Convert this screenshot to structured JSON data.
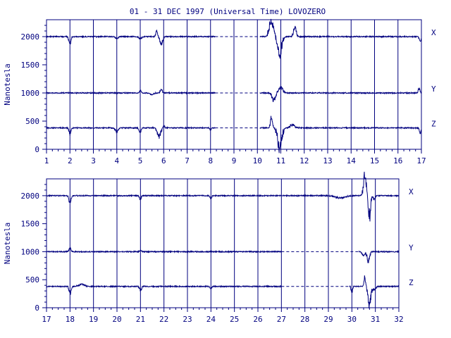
{
  "chart_data": {
    "type": "line",
    "title": "01 - 31 DEC 1997 (Universal Time) LOVOZERO",
    "ylabel": "Nanotesla",
    "color": "#00007f",
    "panels": [
      {
        "id": "top",
        "xlim": [
          1,
          17
        ],
        "ylim": [
          0,
          2300
        ],
        "xticks": [
          "1",
          "2",
          "3",
          "4",
          "5",
          "6",
          "7",
          "8",
          "9",
          "10",
          "11",
          "12",
          "13",
          "14",
          "15",
          "16",
          "17"
        ],
        "yticks": [
          0,
          500,
          1000,
          1500,
          2000
        ],
        "series": [
          {
            "name": "X",
            "baseline": 2000,
            "gap": [
              8.2,
              10.1
            ],
            "events": [
              [
                2.0,
                -130,
                0.06
              ],
              [
                4.0,
                -40,
                0.08
              ],
              [
                5.0,
                -40,
                0.08
              ],
              [
                5.7,
                100,
                0.05
              ],
              [
                5.9,
                -150,
                0.08
              ],
              [
                10.6,
                280,
                0.12
              ],
              [
                10.95,
                -320,
                0.12
              ],
              [
                11.6,
                150,
                0.08
              ],
              [
                16.95,
                -80,
                0.05
              ]
            ]
          },
          {
            "name": "Y",
            "baseline": 1000,
            "gap": [
              8.2,
              10.1
            ],
            "events": [
              [
                5.0,
                40,
                0.05
              ],
              [
                5.5,
                -30,
                0.1
              ],
              [
                5.9,
                60,
                0.06
              ],
              [
                10.7,
                -130,
                0.1
              ],
              [
                11.0,
                100,
                0.12
              ],
              [
                16.9,
                80,
                0.05
              ]
            ]
          },
          {
            "name": "Z",
            "baseline": 380,
            "gap": [
              8.2,
              10.1
            ],
            "events": [
              [
                2.0,
                -100,
                0.06
              ],
              [
                4.0,
                -60,
                0.08
              ],
              [
                5.0,
                -80,
                0.06
              ],
              [
                5.8,
                -150,
                0.1
              ],
              [
                6.0,
                40,
                0.05
              ],
              [
                8.0,
                -30,
                0.06
              ],
              [
                10.6,
                180,
                0.06
              ],
              [
                10.95,
                -330,
                0.12
              ],
              [
                11.5,
                60,
                0.12
              ],
              [
                16.95,
                -90,
                0.05
              ]
            ]
          }
        ]
      },
      {
        "id": "bottom",
        "xlim": [
          17,
          32
        ],
        "ylim": [
          0,
          2300
        ],
        "xticks": [
          "17",
          "18",
          "19",
          "20",
          "21",
          "22",
          "23",
          "24",
          "25",
          "26",
          "27",
          "28",
          "29",
          "30",
          "31",
          "32"
        ],
        "yticks": [
          0,
          500,
          1000,
          1500,
          2000
        ],
        "series": [
          {
            "name": "X",
            "baseline": 2000,
            "gap": null,
            "events": [
              [
                18.0,
                -120,
                0.06
              ],
              [
                21.0,
                -60,
                0.05
              ],
              [
                24.0,
                -50,
                0.05
              ],
              [
                29.5,
                -40,
                0.3
              ],
              [
                30.55,
                350,
                0.08
              ],
              [
                30.75,
                -380,
                0.07
              ],
              [
                30.95,
                -60,
                0.06
              ]
            ]
          },
          {
            "name": "Y",
            "baseline": 1000,
            "gap": [
              27.0,
              30.3
            ],
            "events": [
              [
                18.0,
                60,
                0.06
              ],
              [
                21.0,
                30,
                0.05
              ],
              [
                30.5,
                -70,
                0.08
              ],
              [
                30.7,
                -170,
                0.07
              ]
            ]
          },
          {
            "name": "Z",
            "baseline": 380,
            "gap": [
              27.0,
              29.9
            ],
            "events": [
              [
                18.0,
                -120,
                0.06
              ],
              [
                18.5,
                40,
                0.15
              ],
              [
                21.0,
                -70,
                0.06
              ],
              [
                24.0,
                -40,
                0.05
              ],
              [
                30.0,
                -90,
                0.05
              ],
              [
                30.55,
                150,
                0.05
              ],
              [
                30.75,
                -330,
                0.08
              ],
              [
                30.95,
                -60,
                0.08
              ]
            ]
          }
        ]
      }
    ]
  }
}
